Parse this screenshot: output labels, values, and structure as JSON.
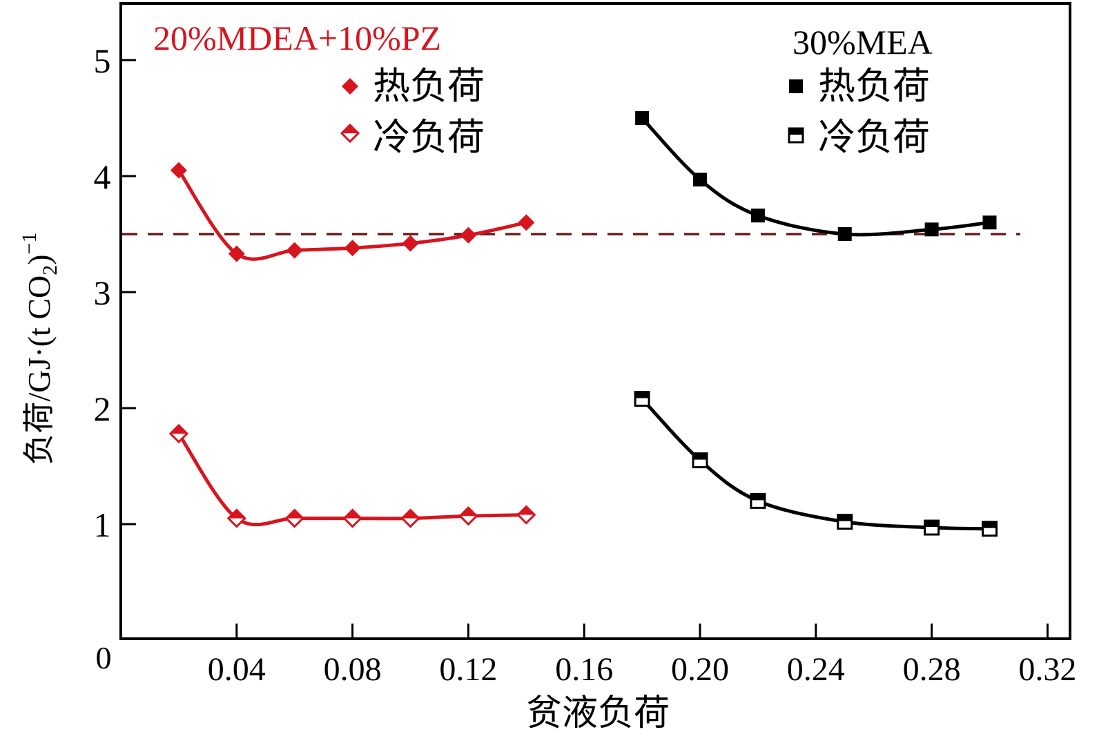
{
  "chart_data": {
    "type": "line",
    "title": "",
    "xlabel": "贫液负荷",
    "ylabel": {
      "prefix": "负荷/GJ·(t CO",
      "subscript": "2",
      "suffix": ")",
      "superscript": "−1"
    },
    "xlim": [
      0,
      0.33
    ],
    "ylim": [
      0,
      5.5
    ],
    "x_ticks": [
      0.04,
      0.08,
      0.12,
      0.16,
      0.2,
      0.24,
      0.28,
      0.32
    ],
    "x_tick_labels": [
      "0.04",
      "0.08",
      "0.12",
      "0.16",
      "0.20",
      "0.24",
      "0.28",
      "0.32"
    ],
    "y_ticks": [
      1,
      2,
      3,
      4,
      5
    ],
    "y_tick_labels": [
      "1",
      "2",
      "3",
      "4",
      "5"
    ],
    "origin_label": "0",
    "grid": false,
    "reference_line": {
      "y": 3.5,
      "style": "dashed",
      "color": "#6b1a1a"
    },
    "groups": [
      {
        "name": "20%MDEA+10%PZ",
        "color": "#d7151f",
        "legend_position": "top-left",
        "series": [
          {
            "name": "热负荷",
            "marker": "diamond-filled",
            "x": [
              0.02,
              0.04,
              0.06,
              0.08,
              0.1,
              0.12,
              0.14
            ],
            "y": [
              4.05,
              3.33,
              3.36,
              3.38,
              3.42,
              3.49,
              3.6
            ]
          },
          {
            "name": "冷负荷",
            "marker": "diamond-half",
            "x": [
              0.02,
              0.04,
              0.06,
              0.08,
              0.1,
              0.12,
              0.14
            ],
            "y": [
              1.78,
              1.05,
              1.05,
              1.05,
              1.05,
              1.07,
              1.08
            ]
          }
        ]
      },
      {
        "name": "30%MEA",
        "color": "#000000",
        "legend_position": "top-right",
        "series": [
          {
            "name": "热负荷",
            "marker": "square-filled",
            "x": [
              0.18,
              0.2,
              0.22,
              0.25,
              0.28,
              0.3
            ],
            "y": [
              4.5,
              3.97,
              3.66,
              3.5,
              3.54,
              3.6
            ]
          },
          {
            "name": "冷负荷",
            "marker": "square-half",
            "x": [
              0.18,
              0.2,
              0.22,
              0.25,
              0.28,
              0.3
            ],
            "y": [
              2.08,
              1.55,
              1.2,
              1.02,
              0.97,
              0.96
            ]
          }
        ]
      }
    ]
  }
}
